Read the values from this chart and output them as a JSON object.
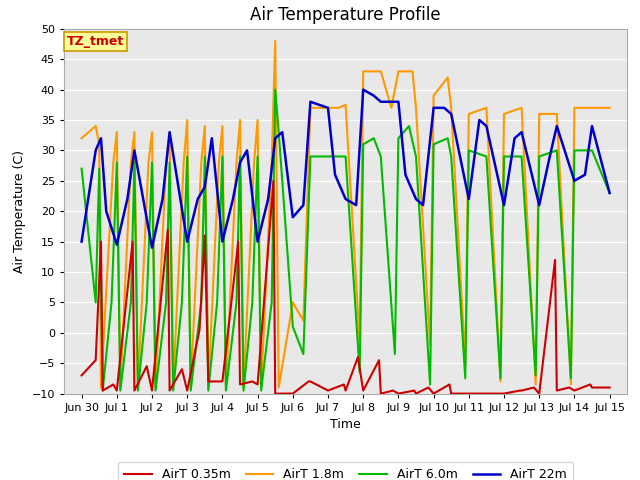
{
  "title": "Air Temperature Profile",
  "xlabel": "Time",
  "ylabel": "Air Temperature (C)",
  "ylim": [
    -10,
    50
  ],
  "background_color": "#e8e8e8",
  "box_color": "#ffff99",
  "box_text": "TZ_tmet",
  "box_text_color": "#cc0000",
  "title_fontsize": 12,
  "axis_label_fontsize": 9,
  "tick_fontsize": 8,
  "legend_fontsize": 9,
  "colors": {
    "AirT_035m": "#cc0000",
    "AirT_18m": "#ff9900",
    "AirT_60m": "#00bb00",
    "AirT_22m": "#0000cc"
  },
  "x_tick_labels": [
    "Jun 30",
    "Jul 1",
    "Jul 2",
    "Jul 3",
    "Jul 4",
    "Jul 5",
    "Jul 6",
    "Jul 7",
    "Jul 8",
    "Jul 9",
    "Jul 10",
    "Jul 11",
    "Jul 12",
    "Jul 13",
    "Jul 14",
    "Jul 15"
  ],
  "x_tick_positions": [
    0,
    1,
    2,
    3,
    4,
    5,
    6,
    7,
    8,
    9,
    10,
    11,
    12,
    13,
    14,
    15
  ],
  "t_035m": [
    [
      0.0,
      -7.0
    ],
    [
      0.4,
      -4.5
    ],
    [
      0.55,
      15.0
    ],
    [
      0.6,
      -9.5
    ],
    [
      0.9,
      -8.5
    ],
    [
      1.0,
      -9.5
    ],
    [
      1.45,
      15.0
    ],
    [
      1.5,
      -9.5
    ],
    [
      1.85,
      -5.5
    ],
    [
      2.0,
      -9.5
    ],
    [
      2.45,
      17.0
    ],
    [
      2.5,
      -9.5
    ],
    [
      2.85,
      -6.0
    ],
    [
      3.0,
      -9.5
    ],
    [
      3.35,
      0.5
    ],
    [
      3.5,
      16.0
    ],
    [
      3.6,
      -8.0
    ],
    [
      3.85,
      -8.0
    ],
    [
      4.0,
      -8.0
    ],
    [
      4.45,
      15.0
    ],
    [
      4.5,
      -8.5
    ],
    [
      4.85,
      -8.0
    ],
    [
      5.0,
      -8.5
    ],
    [
      5.45,
      25.0
    ],
    [
      5.5,
      -10.0
    ],
    [
      5.9,
      -10.0
    ],
    [
      6.0,
      -10.0
    ],
    [
      6.45,
      -8.0
    ],
    [
      6.5,
      -8.0
    ],
    [
      7.0,
      -9.5
    ],
    [
      7.45,
      -8.5
    ],
    [
      7.5,
      -9.5
    ],
    [
      7.85,
      -4.0
    ],
    [
      8.0,
      -9.5
    ],
    [
      8.45,
      -4.5
    ],
    [
      8.5,
      -10.0
    ],
    [
      8.85,
      -9.5
    ],
    [
      9.0,
      -10.0
    ],
    [
      9.45,
      -9.5
    ],
    [
      9.5,
      -10.0
    ],
    [
      9.85,
      -9.0
    ],
    [
      10.0,
      -10.0
    ],
    [
      10.45,
      -8.5
    ],
    [
      10.5,
      -10.0
    ],
    [
      10.85,
      -10.0
    ],
    [
      11.0,
      -10.0
    ],
    [
      11.45,
      -10.0
    ],
    [
      11.5,
      -10.0
    ],
    [
      11.85,
      -10.0
    ],
    [
      12.0,
      -10.0
    ],
    [
      12.45,
      -9.5
    ],
    [
      12.5,
      -9.5
    ],
    [
      12.85,
      -9.0
    ],
    [
      13.0,
      -10.0
    ],
    [
      13.45,
      12.0
    ],
    [
      13.5,
      -9.5
    ],
    [
      13.85,
      -9.0
    ],
    [
      14.0,
      -9.5
    ],
    [
      14.45,
      -8.5
    ],
    [
      14.5,
      -9.0
    ],
    [
      15.0,
      -9.0
    ]
  ],
  "t_18m": [
    [
      0.0,
      32.0
    ],
    [
      0.4,
      34.0
    ],
    [
      0.5,
      31.0
    ],
    [
      0.55,
      -9.0
    ],
    [
      0.9,
      28.0
    ],
    [
      1.0,
      33.0
    ],
    [
      1.1,
      -9.0
    ],
    [
      1.4,
      28.0
    ],
    [
      1.5,
      33.0
    ],
    [
      1.6,
      -9.0
    ],
    [
      1.9,
      28.0
    ],
    [
      2.0,
      33.0
    ],
    [
      2.1,
      -9.0
    ],
    [
      2.4,
      28.0
    ],
    [
      2.5,
      33.0
    ],
    [
      2.6,
      -9.0
    ],
    [
      2.9,
      28.0
    ],
    [
      3.0,
      35.0
    ],
    [
      3.1,
      -9.0
    ],
    [
      3.4,
      28.0
    ],
    [
      3.5,
      34.0
    ],
    [
      3.6,
      -9.0
    ],
    [
      3.9,
      28.0
    ],
    [
      4.0,
      34.0
    ],
    [
      4.1,
      -9.0
    ],
    [
      4.4,
      28.0
    ],
    [
      4.5,
      35.0
    ],
    [
      4.6,
      -9.0
    ],
    [
      4.9,
      28.0
    ],
    [
      5.0,
      35.0
    ],
    [
      5.1,
      -9.0
    ],
    [
      5.4,
      28.0
    ],
    [
      5.5,
      48.0
    ],
    [
      5.6,
      -9.0
    ],
    [
      6.0,
      5.0
    ],
    [
      6.3,
      2.0
    ],
    [
      6.5,
      37.0
    ],
    [
      7.0,
      37.0
    ],
    [
      7.3,
      37.0
    ],
    [
      7.5,
      37.5
    ],
    [
      7.9,
      -1.5
    ],
    [
      8.0,
      43.0
    ],
    [
      8.5,
      43.0
    ],
    [
      8.8,
      37.0
    ],
    [
      9.0,
      43.0
    ],
    [
      9.4,
      43.0
    ],
    [
      9.5,
      37.0
    ],
    [
      9.9,
      -2.0
    ],
    [
      10.0,
      39.0
    ],
    [
      10.4,
      42.0
    ],
    [
      10.5,
      37.0
    ],
    [
      10.9,
      -5.0
    ],
    [
      11.0,
      36.0
    ],
    [
      11.5,
      37.0
    ],
    [
      11.9,
      -8.0
    ],
    [
      12.0,
      36.0
    ],
    [
      12.5,
      37.0
    ],
    [
      12.9,
      -8.5
    ],
    [
      13.0,
      36.0
    ],
    [
      13.5,
      36.0
    ],
    [
      13.9,
      -8.5
    ],
    [
      14.0,
      37.0
    ],
    [
      14.5,
      37.0
    ],
    [
      15.0,
      37.0
    ]
  ],
  "t_60m": [
    [
      0.0,
      27.0
    ],
    [
      0.4,
      5.0
    ],
    [
      0.5,
      27.0
    ],
    [
      0.6,
      -9.5
    ],
    [
      0.85,
      5.0
    ],
    [
      1.0,
      28.0
    ],
    [
      1.1,
      -9.5
    ],
    [
      1.4,
      5.0
    ],
    [
      1.5,
      28.0
    ],
    [
      1.6,
      -9.5
    ],
    [
      1.85,
      5.0
    ],
    [
      2.0,
      28.0
    ],
    [
      2.1,
      -9.5
    ],
    [
      2.4,
      5.0
    ],
    [
      2.5,
      28.0
    ],
    [
      2.6,
      -9.5
    ],
    [
      2.85,
      5.0
    ],
    [
      3.0,
      29.0
    ],
    [
      3.1,
      -9.5
    ],
    [
      3.4,
      5.0
    ],
    [
      3.5,
      29.0
    ],
    [
      3.6,
      -9.5
    ],
    [
      3.85,
      5.0
    ],
    [
      4.0,
      29.0
    ],
    [
      4.1,
      -9.5
    ],
    [
      4.4,
      5.0
    ],
    [
      4.5,
      29.0
    ],
    [
      4.6,
      -9.5
    ],
    [
      4.85,
      5.0
    ],
    [
      5.0,
      29.0
    ],
    [
      5.1,
      -9.5
    ],
    [
      5.4,
      5.0
    ],
    [
      5.5,
      40.0
    ],
    [
      5.6,
      33.0
    ],
    [
      6.0,
      1.0
    ],
    [
      6.3,
      -3.5
    ],
    [
      6.5,
      29.0
    ],
    [
      7.0,
      29.0
    ],
    [
      7.3,
      29.0
    ],
    [
      7.5,
      29.0
    ],
    [
      7.9,
      -6.5
    ],
    [
      8.0,
      31.0
    ],
    [
      8.3,
      32.0
    ],
    [
      8.5,
      29.0
    ],
    [
      8.9,
      -3.5
    ],
    [
      9.0,
      32.0
    ],
    [
      9.3,
      34.0
    ],
    [
      9.5,
      29.0
    ],
    [
      9.9,
      -8.5
    ],
    [
      10.0,
      31.0
    ],
    [
      10.4,
      32.0
    ],
    [
      10.5,
      29.0
    ],
    [
      10.9,
      -7.5
    ],
    [
      11.0,
      30.0
    ],
    [
      11.5,
      29.0
    ],
    [
      11.9,
      -7.5
    ],
    [
      12.0,
      29.0
    ],
    [
      12.5,
      29.0
    ],
    [
      12.9,
      -7.0
    ],
    [
      13.0,
      29.0
    ],
    [
      13.5,
      30.0
    ],
    [
      13.9,
      -7.5
    ],
    [
      14.0,
      30.0
    ],
    [
      14.5,
      30.0
    ],
    [
      15.0,
      23.0
    ]
  ],
  "t_22m": [
    [
      0.0,
      15.0
    ],
    [
      0.4,
      30.0
    ],
    [
      0.55,
      32.0
    ],
    [
      0.7,
      20.0
    ],
    [
      1.0,
      14.5
    ],
    [
      1.3,
      22.0
    ],
    [
      1.5,
      30.0
    ],
    [
      2.0,
      14.0
    ],
    [
      2.3,
      22.0
    ],
    [
      2.5,
      33.0
    ],
    [
      3.0,
      15.0
    ],
    [
      3.3,
      22.0
    ],
    [
      3.5,
      24.0
    ],
    [
      3.7,
      32.0
    ],
    [
      4.0,
      15.0
    ],
    [
      4.3,
      22.0
    ],
    [
      4.5,
      28.0
    ],
    [
      4.7,
      30.0
    ],
    [
      5.0,
      15.0
    ],
    [
      5.3,
      22.0
    ],
    [
      5.5,
      32.0
    ],
    [
      5.7,
      33.0
    ],
    [
      6.0,
      19.0
    ],
    [
      6.3,
      21.0
    ],
    [
      6.5,
      38.0
    ],
    [
      7.0,
      37.0
    ],
    [
      7.2,
      26.0
    ],
    [
      7.5,
      22.0
    ],
    [
      7.8,
      21.0
    ],
    [
      8.0,
      40.0
    ],
    [
      8.3,
      39.0
    ],
    [
      8.5,
      38.0
    ],
    [
      9.0,
      38.0
    ],
    [
      9.2,
      26.0
    ],
    [
      9.5,
      22.0
    ],
    [
      9.7,
      21.0
    ],
    [
      10.0,
      37.0
    ],
    [
      10.3,
      37.0
    ],
    [
      10.5,
      36.0
    ],
    [
      11.0,
      22.0
    ],
    [
      11.3,
      35.0
    ],
    [
      11.5,
      34.0
    ],
    [
      12.0,
      21.0
    ],
    [
      12.3,
      32.0
    ],
    [
      12.5,
      33.0
    ],
    [
      13.0,
      21.0
    ],
    [
      13.3,
      29.0
    ],
    [
      13.5,
      34.0
    ],
    [
      14.0,
      25.0
    ],
    [
      14.3,
      26.0
    ],
    [
      14.5,
      34.0
    ],
    [
      15.0,
      23.0
    ]
  ]
}
